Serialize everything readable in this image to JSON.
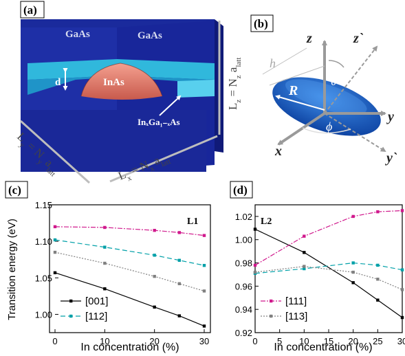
{
  "panels": {
    "a": {
      "tag": "(a)",
      "labels": {
        "gaas_left": "GaAs",
        "gaas_right": "GaAs",
        "inas": "InAs",
        "d": "d",
        "ingaas": "InₓGa₁₋ₓAs",
        "lz": "L_z = N_z a_latt",
        "ly": "L_y = N_y a_latt",
        "lx": "L_x = N_x a_latt"
      },
      "colors": {
        "matrix": "#1c2d9a",
        "matrix_side": "#101a78",
        "well": "#2bb6d8",
        "dot": "#e07868"
      }
    },
    "b": {
      "tag": "(b)",
      "labels": {
        "z": "z",
        "zp": "z`",
        "h": "h",
        "R": "R",
        "theta": "θ",
        "phi": "ϕ",
        "y": "y",
        "x": "x",
        "yp": "y`"
      },
      "colors": {
        "dot": "#1560c8",
        "axis": "#9a9a9a"
      }
    },
    "c": {
      "tag": "(c)"
    },
    "d": {
      "tag": "(d)"
    }
  },
  "chart_data": [
    {
      "panel": "c",
      "type": "line",
      "title": "L1",
      "xlabel": "In concentration (%)",
      "ylabel": "Transition energy (eV)",
      "x": [
        0,
        10,
        20,
        25,
        30
      ],
      "xticks": [
        "0",
        "10",
        "20",
        "30"
      ],
      "xlim": [
        0,
        30
      ],
      "ylim": [
        0.975,
        1.15
      ],
      "yticks": [
        "1.00",
        "1.05",
        "1.10",
        "1.15"
      ],
      "series": [
        {
          "name": "[001]",
          "color": "#000000",
          "dash": "",
          "values": [
            1.057,
            1.035,
            1.01,
            0.998,
            0.984
          ]
        },
        {
          "name": "[112]",
          "color": "#00a0a8",
          "dash": "7,4",
          "values": [
            1.102,
            1.092,
            1.081,
            1.074,
            1.067
          ]
        },
        {
          "name": "[111]",
          "color": "#d0188c",
          "dash": "7,2,2,2",
          "values": [
            1.12,
            1.119,
            1.115,
            1.112,
            1.108
          ]
        },
        {
          "name": "[113]",
          "color": "#808080",
          "dash": "2,2",
          "values": [
            1.085,
            1.07,
            1.052,
            1.042,
            1.032
          ]
        }
      ],
      "legend_entries": [
        "[001]",
        "[112]"
      ],
      "legend": "bottom-left"
    },
    {
      "panel": "d",
      "type": "line",
      "title": "L2",
      "xlabel": "In concentration (%)",
      "ylabel": "",
      "x": [
        0,
        10,
        20,
        25,
        30
      ],
      "xticks": [
        "0",
        "5",
        "10",
        "15",
        "20",
        "25",
        "30"
      ],
      "xlim": [
        0,
        30
      ],
      "ylim": [
        0.92,
        1.03
      ],
      "yticks": [
        "0.92",
        "0.94",
        "0.96",
        "0.98",
        "1.00",
        "1.02"
      ],
      "series": [
        {
          "name": "[001]",
          "color": "#000000",
          "dash": "",
          "values": [
            1.009,
            0.989,
            0.963,
            0.948,
            0.933
          ]
        },
        {
          "name": "[112]",
          "color": "#00a0a8",
          "dash": "7,4",
          "values": [
            0.971,
            0.975,
            0.98,
            0.978,
            0.974
          ]
        },
        {
          "name": "[111]",
          "color": "#d0188c",
          "dash": "7,2,2,2",
          "values": [
            0.978,
            1.003,
            1.02,
            1.024,
            1.025
          ]
        },
        {
          "name": "[113]",
          "color": "#808080",
          "dash": "2,2",
          "values": [
            0.972,
            0.977,
            0.972,
            0.966,
            0.957
          ]
        }
      ],
      "legend_entries": [
        "[111]",
        "[113]"
      ],
      "legend": "bottom-left"
    }
  ]
}
